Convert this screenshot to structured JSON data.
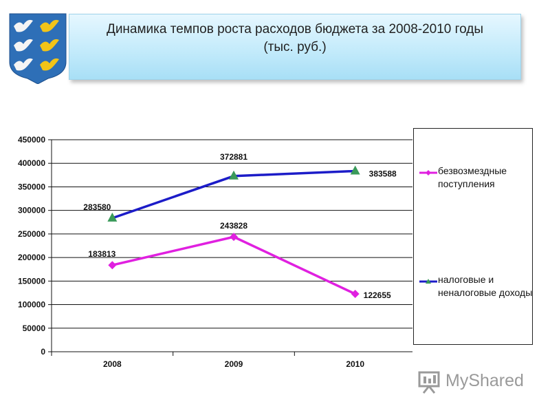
{
  "title": {
    "line1": "Динамика темпов роста расходов бюджета за 2008-2010 годы",
    "line2": "(тыс. руб.)"
  },
  "chart_data": {
    "type": "line",
    "categories": [
      "2008",
      "2009",
      "2010"
    ],
    "series": [
      {
        "name": "безвозмездные поступления",
        "values": [
          183813,
          243828,
          122655
        ],
        "color": "#e020e0",
        "marker": "diamond"
      },
      {
        "name": "налоговые и неналоговые доходы",
        "values": [
          283580,
          372881,
          383588
        ],
        "color": "#1c1cc8",
        "marker": "triangle",
        "marker_color": "#3a9a5a"
      }
    ],
    "ylim": [
      0,
      450000
    ],
    "yticks": [
      "0",
      "50000",
      "100000",
      "150000",
      "200000",
      "250000",
      "300000",
      "350000",
      "400000",
      "450000"
    ],
    "grid": true,
    "legend_position": "right",
    "data_labels": [
      [
        "183813",
        "243828",
        "122655"
      ],
      [
        "283580",
        "372881",
        "383588"
      ]
    ]
  },
  "watermark": {
    "text": "MyShared"
  },
  "colors": {
    "title_bg": "#c4ebfb",
    "emblem_blue": "#2e6fb7",
    "emblem_gold": "#f2c418"
  }
}
